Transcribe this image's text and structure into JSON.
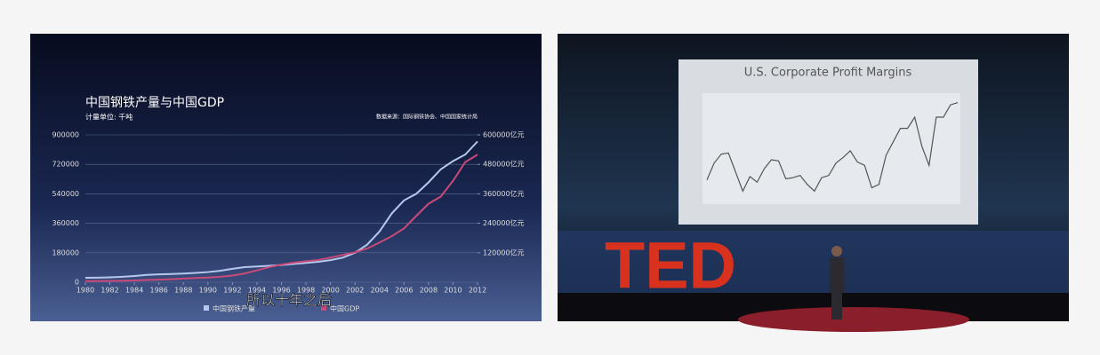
{
  "chart_data": [
    {
      "type": "line",
      "title": "中国钢铁产量与中国GDP",
      "subtitle": "计量单位: 千吨",
      "source": "数据来源：国际钢铁协会、中国国家统计局",
      "x": [
        1980,
        1981,
        1982,
        1983,
        1984,
        1985,
        1986,
        1987,
        1988,
        1989,
        1990,
        1991,
        1992,
        1993,
        1994,
        1995,
        1996,
        1997,
        1998,
        1999,
        2000,
        2001,
        2002,
        2003,
        2004,
        2005,
        2006,
        2007,
        2008,
        2009,
        2010,
        2011,
        2012
      ],
      "xlim": [
        1980,
        2012
      ],
      "xticks": [
        1980,
        1982,
        1984,
        1986,
        1988,
        1990,
        1992,
        1994,
        1996,
        1998,
        2000,
        2002,
        2004,
        2006,
        2008,
        2010,
        2012
      ],
      "ylim": [
        0,
        900000
      ],
      "yticks": [
        0,
        180000,
        360000,
        540000,
        720000,
        900000
      ],
      "y2lim": [
        0,
        600000
      ],
      "y2ticks": [
        {
          "value": 120000,
          "label": "120000亿元"
        },
        {
          "value": 240000,
          "label": "240000亿元"
        },
        {
          "value": 360000,
          "label": "360000亿元"
        },
        {
          "value": 480000,
          "label": "480000亿元"
        },
        {
          "value": 600000,
          "label": "600000亿元"
        }
      ],
      "grid": true,
      "series": [
        {
          "name": "中国钢铁产量",
          "color": "#b4c8ee",
          "values": [
            27000,
            28000,
            30000,
            33000,
            38000,
            45000,
            48000,
            50000,
            53000,
            57000,
            62000,
            70000,
            82000,
            92000,
            96000,
            100000,
            105000,
            112000,
            118000,
            125000,
            135000,
            150000,
            180000,
            230000,
            310000,
            420000,
            500000,
            540000,
            610000,
            690000,
            740000,
            780000,
            860000
          ]
        },
        {
          "name": "中国GDP",
          "color": "#c94a78",
          "axis": "y2",
          "values": [
            4600,
            4900,
            5400,
            6000,
            7300,
            9100,
            10400,
            12200,
            15100,
            17100,
            18900,
            22000,
            27200,
            35700,
            48600,
            61300,
            71800,
            79700,
            85200,
            90600,
            100300,
            111000,
            121700,
            137400,
            161800,
            187300,
            219400,
            270200,
            319500,
            349000,
            413000,
            489300,
            519500
          ]
        }
      ],
      "annotation": "所以十年之后"
    },
    {
      "type": "line",
      "title": "U.S. Corporate Profit Margins",
      "color": "#555555",
      "values": [
        6,
        7.5,
        8.3,
        8.4,
        6.7,
        5,
        6.3,
        5.8,
        7,
        7.8,
        7.7,
        6.1,
        6.2,
        6.4,
        5.6,
        5,
        6.2,
        6.4,
        7.5,
        8,
        8.6,
        7.6,
        7.3,
        5.3,
        5.6,
        8.2,
        9.4,
        10.6,
        10.6,
        11.6,
        9,
        7.3,
        11.6,
        11.6,
        12.7,
        12.9
      ],
      "ylim": [
        4,
        13.5
      ]
    }
  ],
  "stage_sign": "TED"
}
